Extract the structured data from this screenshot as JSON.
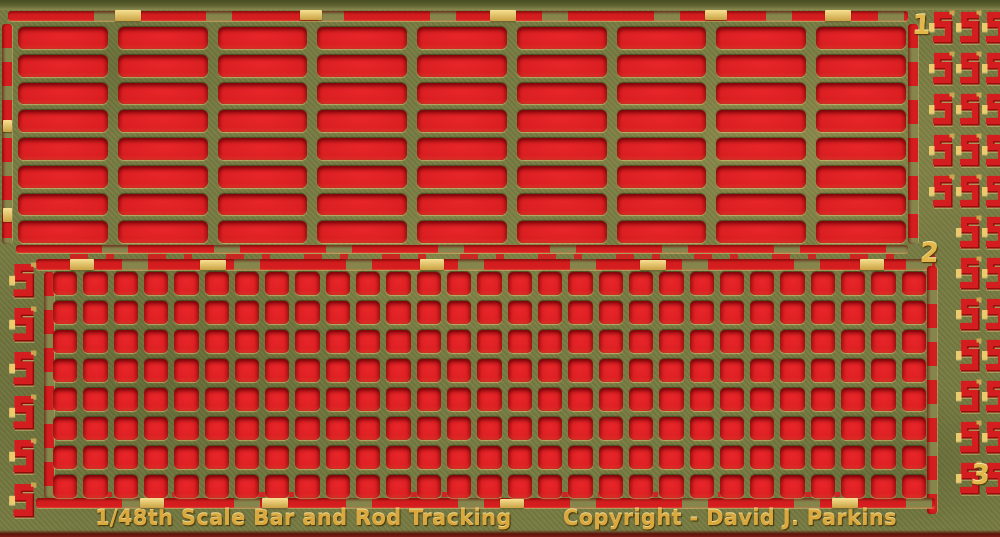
{
  "colors": {
    "red": "#d41d1e",
    "red_dark": "#8d0d0d",
    "brass": "#767a42",
    "brass_tab": "#85854c",
    "gold": "#ecca6e",
    "text_gold": "#d9a83e"
  },
  "footer": {
    "title": "1/48th Scale Bar and Rod Tracking",
    "copyright": "Copyright - David J. Parkins"
  },
  "edge_labels": {
    "n1": "1",
    "n2": "2",
    "n3": "3"
  },
  "top_grid": {
    "rows": 8,
    "cols": 9,
    "cell_name": "bar-slot"
  },
  "bottom_grid": {
    "rows": 8,
    "cols": 29,
    "cell_name": "mesh-hole"
  },
  "s_hooks": {
    "left_count": 6,
    "right_col_a_count": 5,
    "right_col_b_count": 12,
    "right_col_c_count": 12
  }
}
